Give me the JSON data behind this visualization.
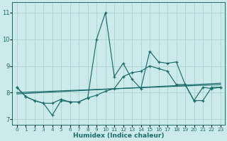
{
  "background_color": "#cdeaea",
  "grid_color": "#b0d5d5",
  "line_color": "#1a6b6b",
  "xlabel": "Humidex (Indice chaleur)",
  "xlim": [
    -0.5,
    23.5
  ],
  "ylim": [
    6.8,
    11.4
  ],
  "yticks": [
    7,
    8,
    9,
    10,
    11
  ],
  "xticks": [
    0,
    1,
    2,
    3,
    4,
    5,
    6,
    7,
    8,
    9,
    10,
    11,
    12,
    13,
    14,
    15,
    16,
    17,
    18,
    19,
    20,
    21,
    22,
    23
  ],
  "lines": [
    {
      "x": [
        0,
        1,
        2,
        3,
        4,
        5,
        6,
        7,
        8,
        9,
        10,
        11,
        12,
        13,
        14,
        15,
        16,
        17,
        18,
        19,
        20,
        21,
        22,
        23
      ],
      "y": [
        8.2,
        7.85,
        7.7,
        7.6,
        7.15,
        7.7,
        7.65,
        7.65,
        7.8,
        10.0,
        11.0,
        8.6,
        9.1,
        8.5,
        8.15,
        9.55,
        9.15,
        9.1,
        9.15,
        8.3,
        7.7,
        8.2,
        8.15,
        8.2
      ]
    },
    {
      "x": [
        0,
        1,
        2,
        3,
        4,
        5,
        6,
        7,
        8,
        9,
        10,
        11,
        12,
        13,
        14,
        15,
        16,
        17,
        18,
        19,
        20,
        21,
        22,
        23
      ],
      "y": [
        8.2,
        7.85,
        7.7,
        7.6,
        7.6,
        7.75,
        7.65,
        7.65,
        7.8,
        7.9,
        8.05,
        8.15,
        8.6,
        8.75,
        8.8,
        9.0,
        8.9,
        8.8,
        8.3,
        8.3,
        7.7,
        7.7,
        8.2,
        8.2
      ]
    },
    {
      "x": [
        0,
        23
      ],
      "y": [
        7.95,
        8.35
      ]
    },
    {
      "x": [
        0,
        23
      ],
      "y": [
        8.0,
        8.3
      ]
    }
  ]
}
